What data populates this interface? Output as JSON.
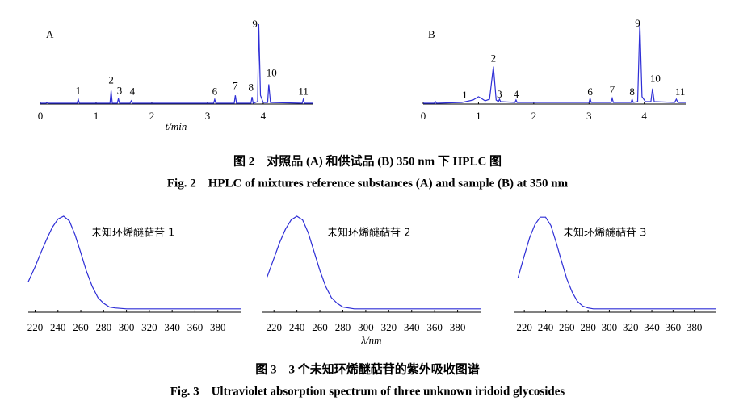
{
  "chart_data": [
    {
      "type": "line",
      "panel_label": "A",
      "x_label": "t/min",
      "xlim": [
        0,
        4.9
      ],
      "xticks": [
        0,
        1,
        2,
        3,
        4
      ],
      "ylim": [
        0,
        100
      ],
      "color": "#2e2ed6",
      "x": [
        0,
        0.1,
        0.12,
        0.14,
        0.66,
        0.68,
        0.7,
        1.25,
        1.27,
        1.29,
        1.38,
        1.4,
        1.42,
        1.61,
        1.63,
        1.65,
        3.11,
        3.13,
        3.15,
        3.48,
        3.5,
        3.52,
        3.78,
        3.8,
        3.82,
        3.9,
        3.92,
        3.95,
        4.0,
        4.08,
        4.1,
        4.13,
        4.7,
        4.72,
        4.74,
        4.9
      ],
      "values": [
        0,
        0,
        1,
        0,
        0,
        5,
        0,
        0,
        16,
        0,
        0,
        6,
        0,
        0,
        3,
        0,
        0,
        5,
        0,
        0,
        10,
        0,
        0,
        8,
        0,
        2,
        100,
        10,
        1,
        1,
        24,
        1,
        0,
        5,
        0,
        0
      ],
      "annotations": [
        {
          "text": "1",
          "x": 0.68,
          "y": 15
        },
        {
          "text": "2",
          "x": 1.27,
          "y": 28
        },
        {
          "text": "3",
          "x": 1.42,
          "y": 15
        },
        {
          "text": "4",
          "x": 1.65,
          "y": 14
        },
        {
          "text": "6",
          "x": 3.13,
          "y": 14
        },
        {
          "text": "7",
          "x": 3.5,
          "y": 21
        },
        {
          "text": "8",
          "x": 3.78,
          "y": 19
        },
        {
          "text": "9",
          "x": 3.85,
          "y": 99
        },
        {
          "text": "10",
          "x": 4.15,
          "y": 37
        },
        {
          "text": "11",
          "x": 4.72,
          "y": 14
        }
      ]
    },
    {
      "type": "line",
      "panel_label": "B",
      "xlim": [
        0,
        4.75
      ],
      "xticks": [
        0,
        1,
        2,
        3,
        4
      ],
      "ylim": [
        0,
        100
      ],
      "color": "#2e2ed6",
      "x": [
        0,
        0.2,
        0.22,
        0.24,
        0.7,
        0.9,
        1.0,
        1.05,
        1.12,
        1.2,
        1.27,
        1.32,
        1.36,
        1.38,
        1.4,
        1.66,
        1.68,
        1.7,
        3.0,
        3.02,
        3.04,
        3.4,
        3.42,
        3.44,
        3.76,
        3.78,
        3.8,
        3.88,
        3.92,
        3.96,
        4.02,
        4.12,
        4.15,
        4.18,
        4.55,
        4.58,
        4.61,
        4.75
      ],
      "values": [
        0,
        0,
        2,
        0,
        1,
        4,
        8,
        6,
        3,
        5,
        45,
        4,
        2,
        5,
        2,
        1,
        4,
        1,
        1,
        6,
        1,
        1,
        6,
        1,
        1,
        5,
        1,
        2,
        100,
        8,
        2,
        2,
        18,
        2,
        1,
        5,
        1,
        1
      ],
      "annotations": [
        {
          "text": "1",
          "x": 0.75,
          "y": 9
        },
        {
          "text": "2",
          "x": 1.27,
          "y": 54
        },
        {
          "text": "3",
          "x": 1.38,
          "y": 10
        },
        {
          "text": "4",
          "x": 1.68,
          "y": 10
        },
        {
          "text": "6",
          "x": 3.02,
          "y": 13
        },
        {
          "text": "7",
          "x": 3.42,
          "y": 16
        },
        {
          "text": "8",
          "x": 3.78,
          "y": 13
        },
        {
          "text": "9",
          "x": 3.88,
          "y": 97
        },
        {
          "text": "10",
          "x": 4.2,
          "y": 29
        },
        {
          "text": "11",
          "x": 4.65,
          "y": 13
        }
      ]
    },
    {
      "type": "line",
      "curve_label": "未知环烯醚萜苷 1",
      "xlim": [
        214,
        400
      ],
      "xticks": [
        220,
        240,
        260,
        280,
        300,
        320,
        340,
        360,
        380
      ],
      "ylim": [
        0,
        1
      ],
      "color": "#2e2ed6",
      "x": [
        214,
        220,
        225,
        230,
        235,
        240,
        245,
        250,
        255,
        260,
        265,
        270,
        275,
        280,
        285,
        290,
        300,
        320,
        340,
        360,
        380,
        400
      ],
      "values": [
        0.3,
        0.46,
        0.61,
        0.75,
        0.88,
        0.97,
        1,
        0.95,
        0.8,
        0.61,
        0.41,
        0.25,
        0.13,
        0.07,
        0.03,
        0.02,
        0.01,
        0.01,
        0.01,
        0.01,
        0.01,
        0.01
      ]
    },
    {
      "type": "line",
      "curve_label": "未知环烯醚萜苷 2",
      "x_label": "λ/nm",
      "xlim": [
        210,
        400
      ],
      "xticks": [
        220,
        240,
        260,
        280,
        300,
        320,
        340,
        360,
        380
      ],
      "ylim": [
        0,
        1
      ],
      "color": "#2e2ed6",
      "x": [
        214,
        220,
        225,
        230,
        235,
        240,
        245,
        250,
        255,
        260,
        265,
        270,
        275,
        280,
        285,
        290,
        300,
        320,
        340,
        360,
        380,
        400
      ],
      "values": [
        0.35,
        0.55,
        0.72,
        0.86,
        0.96,
        1,
        0.96,
        0.82,
        0.62,
        0.42,
        0.25,
        0.13,
        0.07,
        0.03,
        0.02,
        0.01,
        0.01,
        0.01,
        0.01,
        0.01,
        0.01,
        0.01
      ]
    },
    {
      "type": "line",
      "curve_label": "未知环烯醚萜苷 3",
      "xlim": [
        210,
        400
      ],
      "xticks": [
        220,
        240,
        260,
        280,
        300,
        320,
        340,
        360,
        380
      ],
      "ylim": [
        0,
        1
      ],
      "color": "#2e2ed6",
      "x": [
        214,
        220,
        225,
        230,
        235,
        240,
        245,
        250,
        255,
        260,
        265,
        270,
        275,
        280,
        285,
        290,
        300,
        320,
        340,
        360,
        380,
        400
      ],
      "values": [
        0.34,
        0.58,
        0.77,
        0.91,
        0.99,
        0.99,
        0.9,
        0.72,
        0.52,
        0.33,
        0.19,
        0.09,
        0.04,
        0.02,
        0.01,
        0.01,
        0.01,
        0.01,
        0.01,
        0.01,
        0.01,
        0.01
      ]
    }
  ],
  "fig2_caption_cn": "图 2　对照品 (A) 和供试品 (B) 350 nm 下 HPLC 图",
  "fig2_caption_en": "Fig. 2　HPLC of mixtures reference substances (A) and sample (B) at 350 nm",
  "fig3_caption_cn": "图 3　3 个未知环烯醚萜苷的紫外吸收图谱",
  "fig3_caption_en": "Fig. 3　Ultraviolet absorption spectrum of three unknown iridoid glycosides"
}
